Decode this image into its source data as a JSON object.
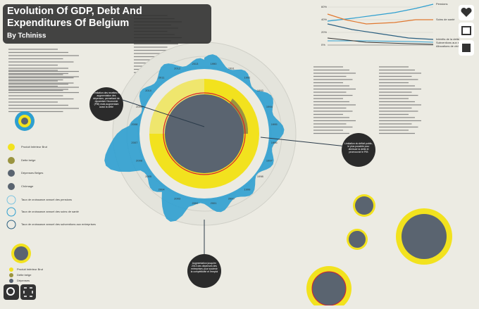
{
  "header": {
    "title": "Evolution Of GDP, Debt And Expenditures Of Belgium",
    "author": "By Tchiniss"
  },
  "legend": [
    "Produit Intérieur Brut",
    "Dette belge",
    "Dépenses Belges",
    "Chômage",
    "Taux de croissance annuel des pensions",
    "Taux de croissance annuel des soins de santé",
    "Taux de croissance annuel des subventions aux entreprises"
  ],
  "callouts": [
    "Limitation des recettes et augmentation des dépenses, permettant de dynamiser l'économie (PIB) mais augmentant aussi la dette",
    "Limitation du déficit public, le plus possible pour diminuer la dette et promouvoir le PIB",
    "Augmentation jusqu'en 2013 des dépenses des entreprises pour soutenir la compétitivité et l'emploi"
  ],
  "years": [
    "1990",
    "1991",
    "1992",
    "1993",
    "1994",
    "1995",
    "1996",
    "1997",
    "1998",
    "1999",
    "2000",
    "2001",
    "2002",
    "2003",
    "2004",
    "2005",
    "2006",
    "2007",
    "2008",
    "2009",
    "2010",
    "2011",
    "2012",
    "2013"
  ],
  "line_chart": {
    "yticks": [
      "60%",
      "40%",
      "20%",
      "0%"
    ],
    "labels": [
      "Pensions",
      "Soins de santé",
      "Intérêts de la dette",
      "Subventions aux entreprises",
      "Allocations de chômage"
    ]
  },
  "bottom_legend": [
    "Produit Intérieur Brut",
    "Dette belge",
    "Dépenses"
  ]
}
